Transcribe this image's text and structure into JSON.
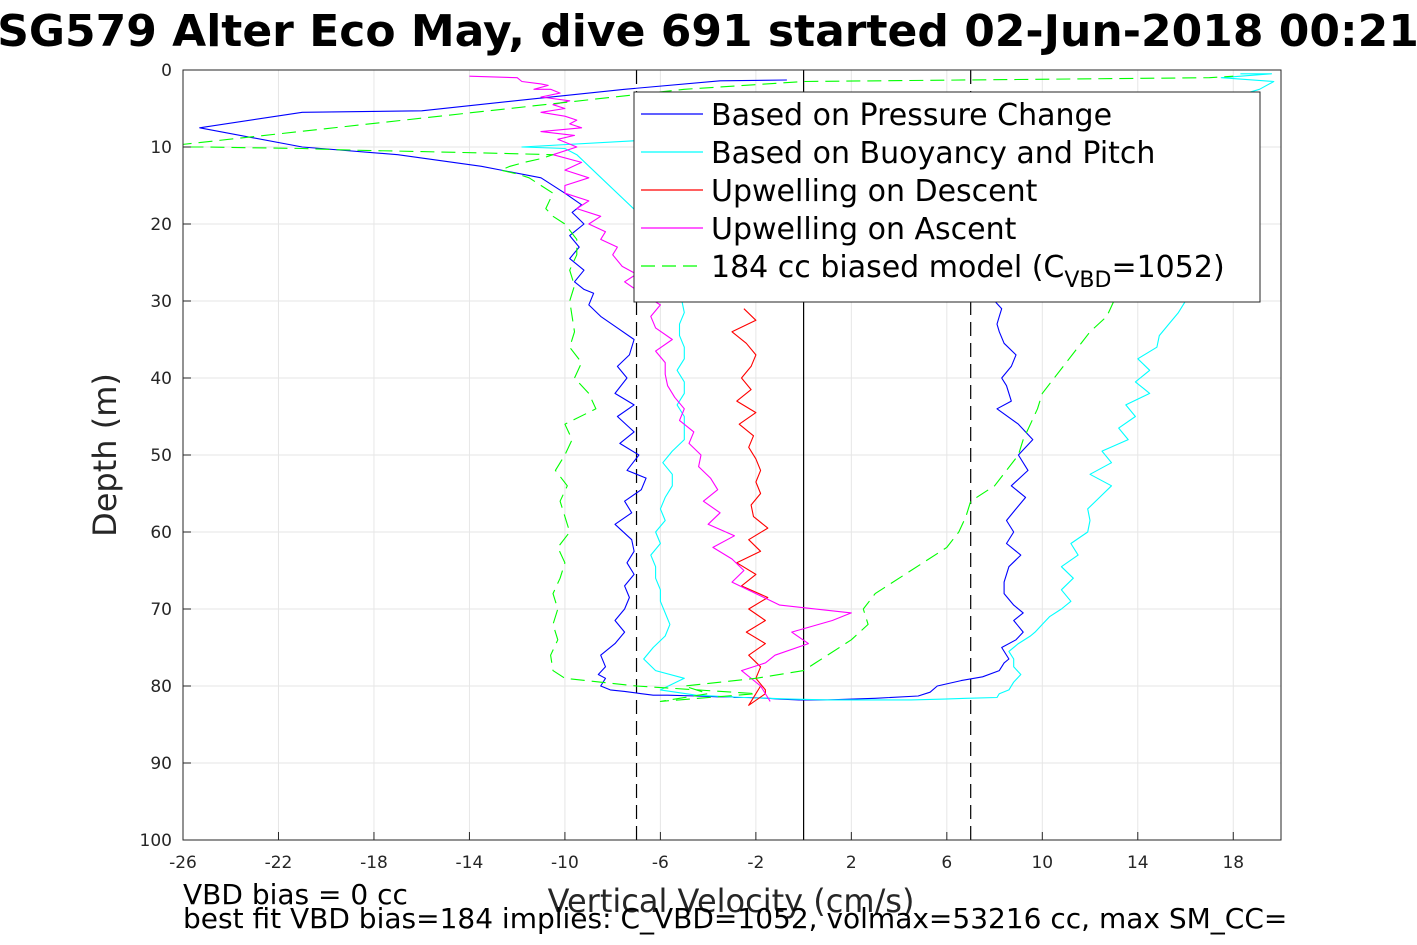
{
  "chart_data": {
    "type": "line",
    "title": "SG579 Alter Eco May, dive 691 started 02-Jun-2018 00:21",
    "xlabel": "Vertical Velocity (cm/s)",
    "ylabel": "Depth (m)",
    "xlim": [
      -26,
      20
    ],
    "ylim": [
      0,
      100
    ],
    "y_reversed": true,
    "grid": true,
    "xticks": [
      -26,
      -22,
      -18,
      -14,
      -10,
      -6,
      -2,
      2,
      6,
      10,
      14,
      18
    ],
    "yticks": [
      0,
      10,
      20,
      30,
      40,
      50,
      60,
      70,
      80,
      90,
      100
    ],
    "legend_position": "top-right",
    "reference_lines": [
      {
        "x": -7,
        "style": "dashed",
        "color": "#000000"
      },
      {
        "x": 0,
        "style": "solid",
        "color": "#000000"
      },
      {
        "x": 7,
        "style": "dashed",
        "color": "#000000"
      }
    ],
    "series": [
      {
        "name": "Based on Pressure Change",
        "color": "#0000ff",
        "style": "solid",
        "x": [
          -0.7,
          -3.5,
          -7.5,
          -11.5,
          -16,
          -21,
          -25.3,
          -21,
          -17,
          -13.5,
          -11,
          -10,
          -9.3,
          -9.7,
          -9.2,
          -9.8,
          -9.4,
          -9.8,
          -9.2,
          -9.6,
          -9.2,
          -8.8,
          -9,
          -8.5,
          -7.8,
          -7.1,
          -7.3,
          -7.8,
          -7.4,
          -7.9,
          -7.1,
          -7.8,
          -7.1,
          -7.7,
          -6.9,
          -7.4,
          -6.6,
          -6.8,
          -7.5,
          -7.2,
          -7.9,
          -7.2,
          -7.1,
          -7.4,
          -7.1,
          -7.5,
          -7.3,
          -7.5,
          -7.9,
          -7.5,
          -7.9,
          -8.5,
          -8.3,
          -8.6,
          -8.3,
          -8.5,
          -8.1,
          -7.5,
          -6.8,
          -6.3,
          -5.7,
          -4.5,
          -3.6,
          -3.0,
          -2.9,
          -2.3,
          -1.5,
          -1.0,
          -0.2,
          1.0,
          3.0,
          4.8,
          5.3,
          5.6,
          6.6,
          7.5,
          8.2,
          8.4,
          8.6,
          8.3,
          8.9,
          9.2,
          8.8,
          9.2,
          8.8,
          8.4,
          8.4,
          8.6,
          9.1,
          8.5,
          8.8,
          8.5,
          8.9,
          9.3,
          8.7,
          9.4,
          9.0,
          9.6,
          9.0,
          8.1,
          8.7,
          8.5,
          8.3,
          8.7,
          8.9,
          8.4,
          8.2,
          8.1,
          8.2,
          8.3,
          8.0,
          8.0,
          8.2,
          7.8,
          8.0,
          7.5,
          7.5,
          7.5,
          7.7,
          7.3
        ],
        "y": [
          1.3,
          1.4,
          2.5,
          3.8,
          5.3,
          5.5,
          7.5,
          10.0,
          11.0,
          12.5,
          14.0,
          16.0,
          17.5,
          18.5,
          20.0,
          21.5,
          23.0,
          24.5,
          26.0,
          27.5,
          28.5,
          29.0,
          30.5,
          32.0,
          33.5,
          35.0,
          37.0,
          38.5,
          40.0,
          42.0,
          43.5,
          45.0,
          47.0,
          48.5,
          50.0,
          52.0,
          53.0,
          54.5,
          56.0,
          57.5,
          59.0,
          61.0,
          62.5,
          64.0,
          65.5,
          67.0,
          68.5,
          70.0,
          71.5,
          73.0,
          74.5,
          76.0,
          77.5,
          78.5,
          79.0,
          80.0,
          80.5,
          80.7,
          81.0,
          81.2,
          81.2,
          81.3,
          81.4,
          81.4,
          81.5,
          81.5,
          81.6,
          81.7,
          81.8,
          81.8,
          81.6,
          81.3,
          80.8,
          80.0,
          79.3,
          78.8,
          78.0,
          77.0,
          76.5,
          75.0,
          74.0,
          73.0,
          71.5,
          70.5,
          69.5,
          68.0,
          66.5,
          64.5,
          63.0,
          61.5,
          60.0,
          58.5,
          57.0,
          55.5,
          54.0,
          52.0,
          50.0,
          48.0,
          46.0,
          44.0,
          43.0,
          41.0,
          40.0,
          38.5,
          37.0,
          35.5,
          34.0,
          33.0,
          32.0,
          31.0,
          30.0,
          28.0,
          26.0,
          24.0,
          22.0,
          20.0,
          18.0,
          16.0,
          14.0,
          12.0
        ]
      },
      {
        "name": "Based on Buoyancy and Pitch",
        "color": "#00ffff",
        "style": "solid",
        "x": [
          18.3,
          19.6,
          17.5,
          19.7,
          19.1,
          18.0,
          17.2,
          16.4,
          16.7,
          16.3,
          16.2,
          15.7,
          15.3,
          14.9,
          14.8,
          14.0,
          14.5,
          13.9,
          14.5,
          13.5,
          13.9,
          13.2,
          13.6,
          12.5,
          12.9,
          12.0,
          12.9,
          12.4,
          11.9,
          12.0,
          11.9,
          11.2,
          11.5,
          10.8,
          11.3,
          10.8,
          11.2,
          10.8,
          10.3,
          10.0,
          9.7,
          9.5,
          9.0,
          8.6,
          8.8,
          8.8,
          9.1,
          8.8,
          8.6,
          8.2,
          8.1,
          6.8,
          5.9,
          4.5,
          3.0,
          1.0,
          -0.5,
          -2.5,
          -4.5,
          -6.0,
          -5.0,
          -6.2,
          -6.7,
          -6.3,
          -5.8,
          -5.6,
          -5.8,
          -6.0,
          -6.0,
          -6.2,
          -6.2,
          -6.4,
          -6.0,
          -6.2,
          -5.8,
          -6.0,
          -5.8,
          -5.5,
          -5.5,
          -5.9,
          -5.5,
          -5.0,
          -5.0,
          -5.0,
          -5.3,
          -5.0,
          -5.0,
          -5.3,
          -5.0,
          -5.0,
          -5.2,
          -5.2,
          -5.0,
          -5.1,
          -5.2,
          -5.2,
          -5.5,
          -5.5,
          -5.6,
          -9.5,
          -10.0,
          -11.8,
          -6.0
        ],
        "y": [
          0.5,
          0.5,
          1.0,
          1.5,
          2.5,
          3.5,
          4.0,
          5.5,
          10.0,
          20.0,
          29.0,
          31.5,
          33.0,
          34.5,
          36.0,
          37.5,
          39.0,
          40.5,
          42.0,
          43.5,
          45.0,
          46.5,
          48.0,
          49.5,
          51.0,
          52.5,
          54.0,
          55.5,
          57.0,
          58.5,
          60.0,
          61.5,
          63.0,
          64.5,
          66.0,
          67.5,
          69.0,
          70.0,
          71.0,
          72.0,
          73.0,
          73.5,
          74.5,
          75.5,
          76.5,
          77.5,
          78.5,
          79.5,
          80.5,
          81.0,
          81.5,
          81.6,
          81.7,
          81.8,
          81.8,
          81.8,
          81.7,
          81.5,
          81.2,
          80.5,
          79.0,
          78.0,
          76.5,
          75.0,
          73.5,
          72.0,
          70.5,
          69.0,
          67.5,
          66.0,
          64.5,
          63.0,
          61.5,
          60.0,
          58.5,
          57.0,
          55.5,
          54.0,
          52.5,
          51.0,
          49.5,
          48.0,
          46.5,
          45.0,
          43.5,
          42.0,
          40.5,
          39.0,
          37.5,
          36.0,
          34.5,
          33.0,
          31.5,
          30.0,
          28.5,
          27.0,
          25.5,
          24.0,
          22.5,
          11.0,
          10.2,
          10.0,
          9.0
        ]
      },
      {
        "name": "Upwelling on Descent",
        "color": "#ff0000",
        "style": "solid",
        "x": [
          -2.5,
          -2.0,
          -3.0,
          -2.4,
          -2.0,
          -2.2,
          -2.6,
          -2.2,
          -2.8,
          -2.0,
          -2.7,
          -2.1,
          -2.3,
          -2.0,
          -1.8,
          -2.0,
          -1.8,
          -2.2,
          -2.1,
          -1.5,
          -2.3,
          -1.8,
          -2.8,
          -2.0,
          -2.6,
          -1.5,
          -2.3,
          -1.6,
          -2.4,
          -1.6,
          -2.3,
          -1.8,
          -2.0,
          -1.6,
          -1.6,
          -2.3,
          -1.8
        ],
        "y": [
          31.0,
          32.5,
          34.0,
          35.5,
          37.0,
          38.5,
          40.0,
          41.5,
          43.0,
          44.5,
          46.0,
          47.5,
          49.0,
          50.5,
          52.0,
          53.5,
          55.0,
          56.5,
          58.0,
          59.5,
          61.0,
          62.5,
          64.0,
          65.5,
          67.0,
          68.5,
          70.0,
          71.5,
          73.0,
          74.5,
          76.0,
          77.5,
          79.0,
          80.5,
          81.0,
          82.5,
          80.0
        ]
      },
      {
        "name": "Upwelling on Ascent",
        "color": "#ff00ff",
        "style": "solid",
        "x": [
          -1.4,
          -1.8,
          -2.6,
          -1.6,
          -1.2,
          0.2,
          -0.5,
          1.2,
          2.0,
          -1.0,
          -2.0,
          -3.0,
          -2.5,
          -3.0,
          -3.8,
          -2.9,
          -4.0,
          -3.5,
          -4.2,
          -3.6,
          -3.9,
          -4.4,
          -4.3,
          -4.8,
          -4.6,
          -5.2,
          -5.0,
          -5.4,
          -5.7,
          -5.8,
          -5.8,
          -6.2,
          -5.5,
          -6.2,
          -6.4,
          -6.0,
          -6.8,
          -7.5,
          -7.0,
          -7.6,
          -8.0,
          -7.8,
          -8.5,
          -8.3,
          -9.0,
          -8.5,
          -9.5,
          -9.0,
          -10.0,
          -10.0,
          -9.0,
          -10.0,
          -9.3,
          -10.5,
          -9.5,
          -10.3,
          -9.6,
          -11.0,
          -9.3,
          -9.8,
          -9.5,
          -10.0,
          -11.0,
          -10.0,
          -10.5,
          -9.8,
          -11.0,
          -10.2,
          -10.6,
          -11.3,
          -10.7,
          -11.0,
          -11.8,
          -12.0,
          -14.0
        ],
        "y": [
          82.0,
          80.0,
          78.0,
          77.0,
          76.0,
          74.5,
          73.0,
          71.5,
          70.5,
          69.5,
          68.0,
          66.5,
          65.0,
          63.5,
          62.0,
          60.5,
          59.0,
          57.5,
          56.0,
          54.5,
          53.0,
          51.5,
          50.0,
          48.5,
          47.0,
          45.5,
          44.0,
          42.5,
          41.0,
          39.5,
          38.0,
          36.5,
          35.0,
          33.5,
          32.0,
          30.5,
          29.0,
          27.5,
          26.5,
          25.5,
          24.0,
          23.0,
          22.0,
          21.0,
          20.0,
          19.0,
          18.0,
          17.0,
          16.0,
          15.0,
          14.0,
          13.0,
          12.0,
          11.0,
          10.0,
          9.0,
          8.5,
          8.0,
          7.5,
          7.0,
          6.5,
          6.0,
          5.5,
          5.0,
          4.5,
          4.0,
          3.5,
          3.0,
          2.5,
          2.5,
          2.0,
          1.8,
          1.5,
          1.0,
          0.8
        ]
      },
      {
        "name": "184 cc biased model (C_VBD=1052)",
        "color": "#00ff00",
        "style": "dashed",
        "x": [
          17.0,
          18.0,
          16.5,
          16.0,
          15.0,
          14.0,
          13.5,
          13.0,
          12.7,
          12.0,
          11.5,
          11.0,
          10.5,
          10.0,
          9.8,
          9.5,
          9.2,
          9.0,
          8.5,
          8.0,
          7.0,
          6.8,
          6.5,
          6.0,
          5.0,
          4.0,
          3.0,
          2.5,
          2.7,
          2.0,
          1.0,
          0.5,
          0.0,
          -2.0,
          -5.0,
          -4.0,
          -6.0,
          -2.0,
          -7.0,
          -10.0,
          -10.5,
          -10.6,
          -10.3,
          -10.5,
          -10.3,
          -10.5,
          -10.2,
          -10.0,
          -10.3,
          -9.8,
          -10.0,
          -10.2,
          -9.9,
          -10.4,
          -10.0,
          -9.7,
          -10.0,
          -8.7,
          -9.0,
          -9.6,
          -9.3,
          -9.8,
          -9.6,
          -9.7,
          -9.8,
          -9.6,
          -9.8,
          -9.5,
          -9.5,
          -10.0,
          -10.5,
          -10.8,
          -10.5,
          -11.0,
          -11.5,
          -12.0,
          -12.7,
          -12.3,
          -11.7,
          -11.0,
          -10.5,
          -13.0,
          -16.0,
          -19.0,
          -21.0,
          -23.0,
          -25.0,
          -27.0,
          -5.0,
          0.0,
          17.0,
          18.0
        ],
        "y": [
          3.0,
          3.5,
          5.0,
          10.0,
          20.0,
          25.0,
          28.0,
          30.0,
          32.0,
          34.0,
          36.0,
          38.0,
          40.0,
          42.0,
          44.0,
          46.0,
          48.0,
          50.0,
          52.0,
          54.0,
          56.0,
          58.0,
          60.0,
          62.0,
          64.0,
          66.0,
          68.0,
          70.0,
          72.0,
          74.0,
          76.0,
          77.0,
          78.0,
          79.0,
          80.0,
          81.0,
          82.0,
          81.0,
          80.0,
          79.0,
          78.0,
          76.0,
          74.0,
          72.0,
          70.0,
          68.0,
          66.0,
          64.0,
          62.0,
          60.0,
          58.0,
          56.0,
          54.0,
          52.0,
          50.0,
          48.0,
          46.0,
          44.0,
          42.0,
          40.0,
          38.0,
          36.0,
          34.0,
          32.0,
          30.0,
          28.0,
          26.0,
          24.0,
          22.0,
          20.0,
          19.0,
          18.0,
          16.0,
          15.0,
          14.0,
          13.5,
          13.0,
          12.5,
          12.0,
          11.5,
          11.0,
          10.8,
          10.6,
          10.4,
          10.2,
          10.1,
          10.0,
          10.0,
          2.5,
          1.5,
          1.0,
          0.8
        ]
      }
    ]
  },
  "legend": {
    "items": [
      {
        "prefix": "Based on Pressure Change",
        "sub": "",
        "suffix": ""
      },
      {
        "prefix": "Based on Buoyancy and Pitch",
        "sub": "",
        "suffix": ""
      },
      {
        "prefix": "Upwelling on Descent",
        "sub": "",
        "suffix": ""
      },
      {
        "prefix": "Upwelling on Ascent",
        "sub": "",
        "suffix": ""
      },
      {
        "prefix": "184 cc biased model (C",
        "sub": "VBD",
        "suffix": "=1052)"
      }
    ]
  },
  "footer": {
    "line1": "VBD bias = 0 cc",
    "line2": "best fit VBD bias=184 implies: C_VBD=1052, volmax=53216 cc, max SM_CC="
  }
}
